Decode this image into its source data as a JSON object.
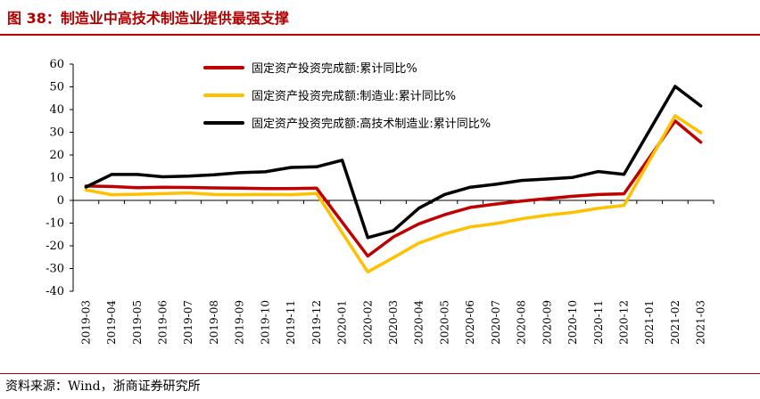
{
  "header": {
    "title": "图 38：制造业中高技术制造业提供最强支撑"
  },
  "footer": {
    "source": "资料来源：Wind，浙商证券研究所"
  },
  "colors": {
    "accent": "#b30000",
    "series": [
      "#c00000",
      "#ffc000",
      "#000000"
    ]
  },
  "chart_data": {
    "type": "line",
    "title": "制造业中高技术制造业提供最强支撑",
    "xlabel": "",
    "ylabel": "",
    "ylim": [
      -40,
      60
    ],
    "yticks": [
      -40,
      -30,
      -20,
      -10,
      0,
      10,
      20,
      30,
      40,
      50,
      60
    ],
    "grid": false,
    "legend_position": "top",
    "categories": [
      "2019-03",
      "2019-04",
      "2019-05",
      "2019-06",
      "2019-07",
      "2019-08",
      "2019-09",
      "2019-10",
      "2019-11",
      "2019-12",
      "2020-01",
      "2020-02",
      "2020-03",
      "2020-04",
      "2020-05",
      "2020-06",
      "2020-07",
      "2020-08",
      "2020-09",
      "2020-10",
      "2020-11",
      "2020-12",
      "2021-01",
      "2021-02",
      "2021-03"
    ],
    "series": [
      {
        "name": "固定资产投资完成额:累计同比%",
        "values": [
          6.3,
          6.1,
          5.6,
          5.8,
          5.7,
          5.5,
          5.4,
          5.2,
          5.2,
          5.4,
          null,
          -24.5,
          -16.1,
          -10.3,
          -6.3,
          -3.1,
          -1.6,
          -0.3,
          0.8,
          1.8,
          2.6,
          2.9,
          null,
          35.0,
          25.6
        ]
      },
      {
        "name": "固定资产投资完成额:制造业:累计同比%",
        "values": [
          4.6,
          2.5,
          2.7,
          3.0,
          3.3,
          2.6,
          2.5,
          2.6,
          2.5,
          3.1,
          null,
          -31.5,
          -25.2,
          -18.8,
          -14.8,
          -11.7,
          -10.2,
          -8.1,
          -6.5,
          -5.3,
          -3.5,
          -2.2,
          null,
          37.3,
          29.8
        ]
      },
      {
        "name": "固定资产投资完成额:高技术制造业:累计同比%",
        "values": [
          5.9,
          11.4,
          11.4,
          10.4,
          10.7,
          11.3,
          12.2,
          12.6,
          14.5,
          14.8,
          17.7,
          -16.4,
          -13.3,
          -3.4,
          2.6,
          5.8,
          7.1,
          8.8,
          9.4,
          10.1,
          12.7,
          11.5,
          null,
          50.2,
          41.6
        ]
      }
    ]
  }
}
